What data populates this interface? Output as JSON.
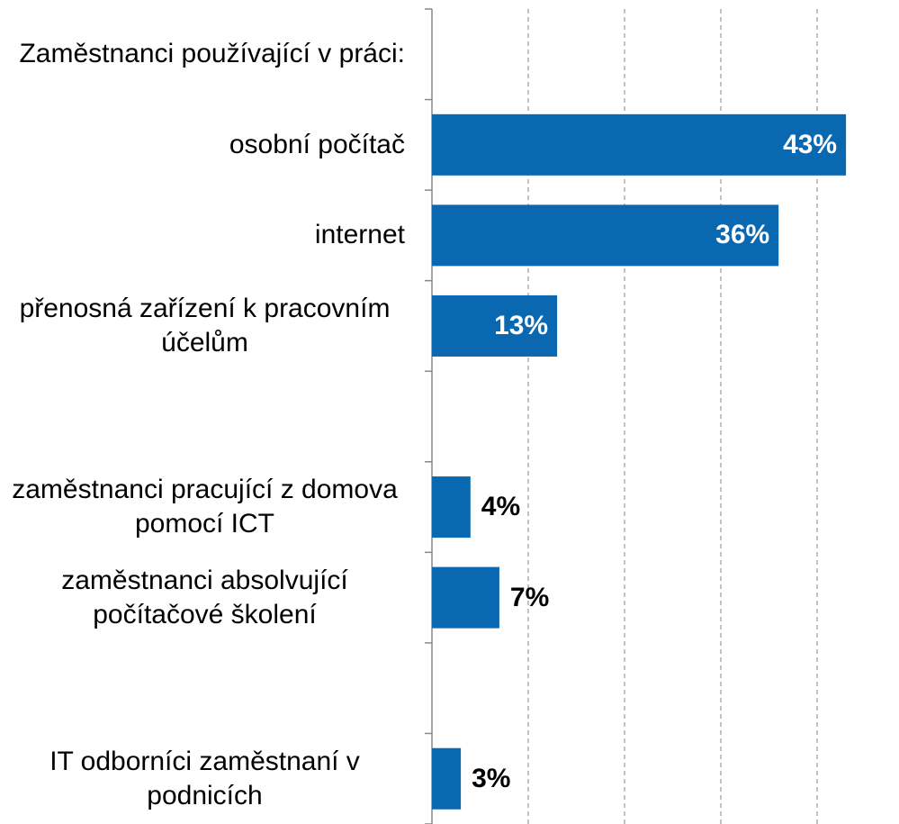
{
  "chart_data": {
    "type": "barh",
    "categories": [
      "Zaměstnanci používající v práci:",
      "osobní počítač",
      "internet",
      "přenosná zařízení k pracovním účelům",
      null,
      "zaměstnanci pracující z domova pomocí ICT",
      "zaměstnanci absolvující počítačové školení",
      null,
      "IT odborníci zaměstnaní v podnicích"
    ],
    "values": [
      null,
      43,
      36,
      13,
      null,
      4,
      7,
      null,
      3
    ],
    "value_labels": [
      null,
      "43%",
      "36%",
      "13%",
      null,
      "4%",
      "7%",
      null,
      "3%"
    ],
    "color": "#0968b0",
    "xlim": [
      0,
      48
    ],
    "xticks": [
      0,
      10,
      20,
      30,
      40
    ],
    "grid": true
  }
}
